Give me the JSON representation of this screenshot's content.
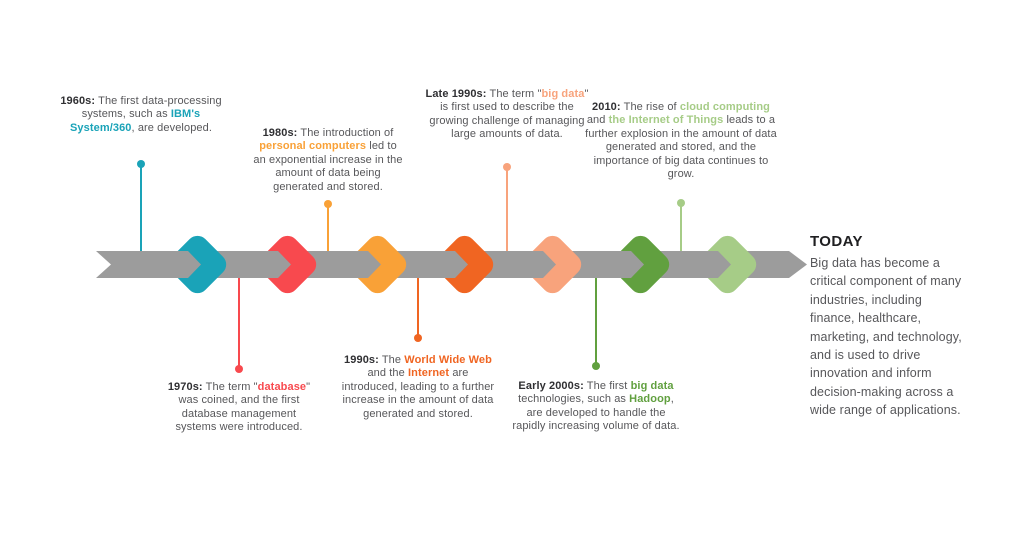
{
  "page": {
    "background": "#ffffff"
  },
  "timeline": {
    "bar_color": "#9c9c9c",
    "events": [
      {
        "id": "1960s",
        "side": "above",
        "color": "#1aa3b8",
        "segments": [
          {
            "text": "1960s:",
            "style": "year"
          },
          {
            "text": " The first data-processing systems, such as ",
            "style": "plain"
          },
          {
            "text": "IBM's System/360",
            "style": "accent"
          },
          {
            "text": ", are developed.",
            "style": "plain"
          }
        ]
      },
      {
        "id": "1970s",
        "side": "below",
        "color": "#f8494e",
        "segments": [
          {
            "text": "1970s:",
            "style": "year"
          },
          {
            "text": " The term \"",
            "style": "plain"
          },
          {
            "text": "database",
            "style": "accent"
          },
          {
            "text": "\" was coined, and the first database management systems were introduced.",
            "style": "plain"
          }
        ]
      },
      {
        "id": "1980s",
        "side": "above",
        "color": "#f9a137",
        "segments": [
          {
            "text": "1980s:",
            "style": "year"
          },
          {
            "text": " The introduction of ",
            "style": "plain"
          },
          {
            "text": "personal computers",
            "style": "accent"
          },
          {
            "text": " led to an exponential increase in the amount of data being generated and stored.",
            "style": "plain"
          }
        ]
      },
      {
        "id": "1990s",
        "side": "below",
        "color": "#f06522",
        "segments": [
          {
            "text": "1990s:",
            "style": "year"
          },
          {
            "text": " The ",
            "style": "plain"
          },
          {
            "text": "World Wide Web",
            "style": "accent"
          },
          {
            "text": " and the ",
            "style": "plain"
          },
          {
            "text": "Internet",
            "style": "accent"
          },
          {
            "text": " are introduced, leading to a further increase in the amount of data generated and stored.",
            "style": "plain"
          }
        ]
      },
      {
        "id": "late-1990s",
        "side": "above",
        "color": "#f8a37c",
        "segments": [
          {
            "text": "Late 1990s:",
            "style": "year"
          },
          {
            "text": " The term \"",
            "style": "plain"
          },
          {
            "text": "big data",
            "style": "accent"
          },
          {
            "text": "\" is first used to describe the growing challenge of managing large amounts of data.",
            "style": "plain"
          }
        ]
      },
      {
        "id": "early-2000s",
        "side": "below",
        "color": "#61a03f",
        "segments": [
          {
            "text": "Early 2000s:",
            "style": "year"
          },
          {
            "text": " The first ",
            "style": "plain"
          },
          {
            "text": "big data",
            "style": "accent"
          },
          {
            "text": " technologies, such as ",
            "style": "plain"
          },
          {
            "text": "Hadoop",
            "style": "accent"
          },
          {
            "text": ", are developed to handle the rapidly increasing volume of data.",
            "style": "plain"
          }
        ]
      },
      {
        "id": "2010",
        "side": "above",
        "color": "#a6cc87",
        "segments": [
          {
            "text": "2010:",
            "style": "year"
          },
          {
            "text": " The rise of ",
            "style": "plain"
          },
          {
            "text": "cloud computing",
            "style": "accent"
          },
          {
            "text": " and ",
            "style": "plain"
          },
          {
            "text": "the Internet of Things",
            "style": "accent"
          },
          {
            "text": " leads to a further explosion in the amount of data generated and stored, and the importance of big data continues to grow.",
            "style": "plain"
          }
        ]
      }
    ]
  },
  "today": {
    "title": "TODAY",
    "body": "Big data has become a critical component of many industries, including finance, healthcare, marketing, and technology, and is used to drive innovation and inform decision-making across a wide range of applications."
  }
}
